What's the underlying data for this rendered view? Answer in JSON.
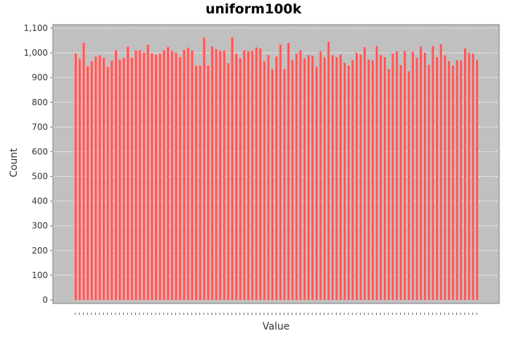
{
  "chart_data": {
    "type": "bar",
    "title": "uniform100k",
    "xlabel": "Value",
    "ylabel": "Count",
    "ylim": [
      0,
      1100
    ],
    "yticks": [
      0,
      100,
      200,
      300,
      400,
      500,
      600,
      700,
      800,
      900,
      1000,
      1100
    ],
    "ytick_labels": [
      "0",
      "100",
      "200",
      "300",
      "400",
      "500",
      "600",
      "700",
      "800",
      "900",
      "1,000",
      "1,100"
    ],
    "grid": true,
    "legend": "none",
    "values": [
      998,
      975,
      1041,
      945,
      966,
      985,
      990,
      980,
      943,
      968,
      1010,
      972,
      980,
      1025,
      980,
      1010,
      1010,
      1000,
      1033,
      998,
      993,
      997,
      1010,
      1023,
      1007,
      1001,
      983,
      1013,
      1021,
      1009,
      948,
      948,
      1062,
      948,
      1026,
      1015,
      1008,
      1010,
      958,
      1062,
      997,
      978,
      1010,
      1006,
      1008,
      1022,
      1018,
      966,
      991,
      934,
      985,
      1033,
      934,
      1040,
      970,
      998,
      1010,
      978,
      991,
      988,
      944,
      1007,
      982,
      1045,
      990,
      983,
      993,
      960,
      948,
      970,
      1000,
      993,
      1023,
      973,
      970,
      1028,
      991,
      983,
      935,
      998,
      1007,
      951,
      1008,
      925,
      1004,
      980,
      1025,
      1000,
      952,
      1028,
      983,
      1035,
      990,
      967,
      949,
      970,
      970,
      1018,
      1000,
      997,
      970
    ],
    "colors": {
      "bar": "#ff5555",
      "bar_highlight": "#ffb4b4",
      "plot_bg": "#c0c0c0",
      "grid": "#ffffff"
    }
  }
}
